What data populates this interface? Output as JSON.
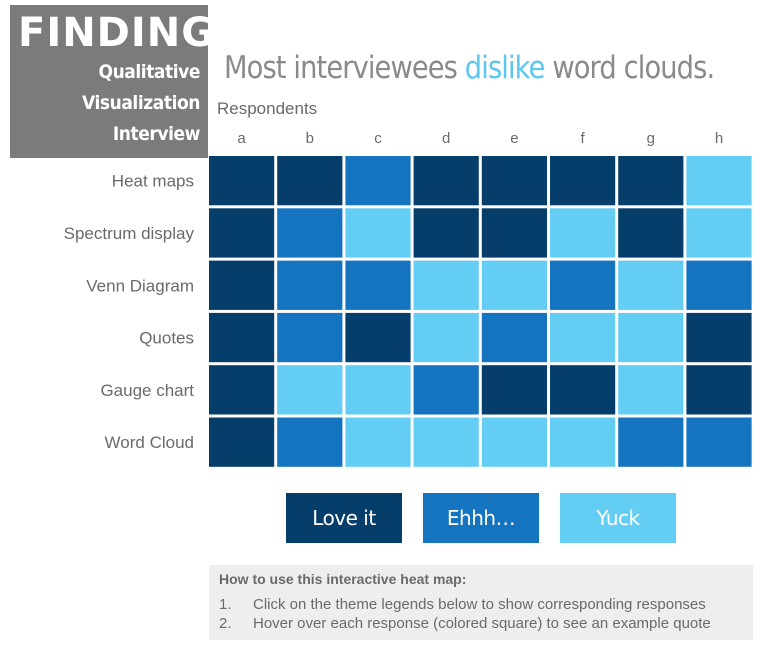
{
  "badge": {
    "title": "FINDINGS",
    "line1": "Qualitative",
    "line2": "Visualization",
    "line3": "Interview"
  },
  "headline": {
    "before": "Most interviewees ",
    "accent": "dislike",
    "after": " word clouds."
  },
  "respondents_label": "Respondents",
  "colors": {
    "love": "#063e6b",
    "ehhh": "#1574c0",
    "yuck": "#64cdf4"
  },
  "chart_data": {
    "type": "heatmap",
    "columns": [
      "a",
      "b",
      "c",
      "d",
      "e",
      "f",
      "g",
      "h"
    ],
    "rows": [
      "Heat maps",
      "Spectrum display",
      "Venn Diagram",
      "Quotes",
      "Gauge chart",
      "Word Cloud"
    ],
    "categories": [
      "Love it",
      "Ehhh…",
      "Yuck"
    ],
    "values": [
      [
        "Love it",
        "Love it",
        "Ehhh…",
        "Love it",
        "Love it",
        "Love it",
        "Love it",
        "Yuck"
      ],
      [
        "Love it",
        "Ehhh…",
        "Yuck",
        "Love it",
        "Love it",
        "Yuck",
        "Love it",
        "Yuck"
      ],
      [
        "Love it",
        "Ehhh…",
        "Ehhh…",
        "Yuck",
        "Yuck",
        "Ehhh…",
        "Yuck",
        "Ehhh…"
      ],
      [
        "Love it",
        "Ehhh…",
        "Love it",
        "Yuck",
        "Ehhh…",
        "Yuck",
        "Yuck",
        "Love it"
      ],
      [
        "Love it",
        "Yuck",
        "Yuck",
        "Ehhh…",
        "Love it",
        "Love it",
        "Yuck",
        "Love it"
      ],
      [
        "Love it",
        "Ehhh…",
        "Yuck",
        "Yuck",
        "Yuck",
        "Yuck",
        "Ehhh…",
        "Ehhh…"
      ]
    ],
    "xlabel": "Respondents",
    "legend": [
      "Love it",
      "Ehhh…",
      "Yuck"
    ]
  },
  "howto": {
    "title": "How to use this interactive heat map:",
    "items": [
      {
        "num": "1.",
        "text": "Click on the theme legends below to show corresponding responses"
      },
      {
        "num": "2.",
        "text": "Hover over each response (colored square) to see an example quote"
      }
    ]
  }
}
